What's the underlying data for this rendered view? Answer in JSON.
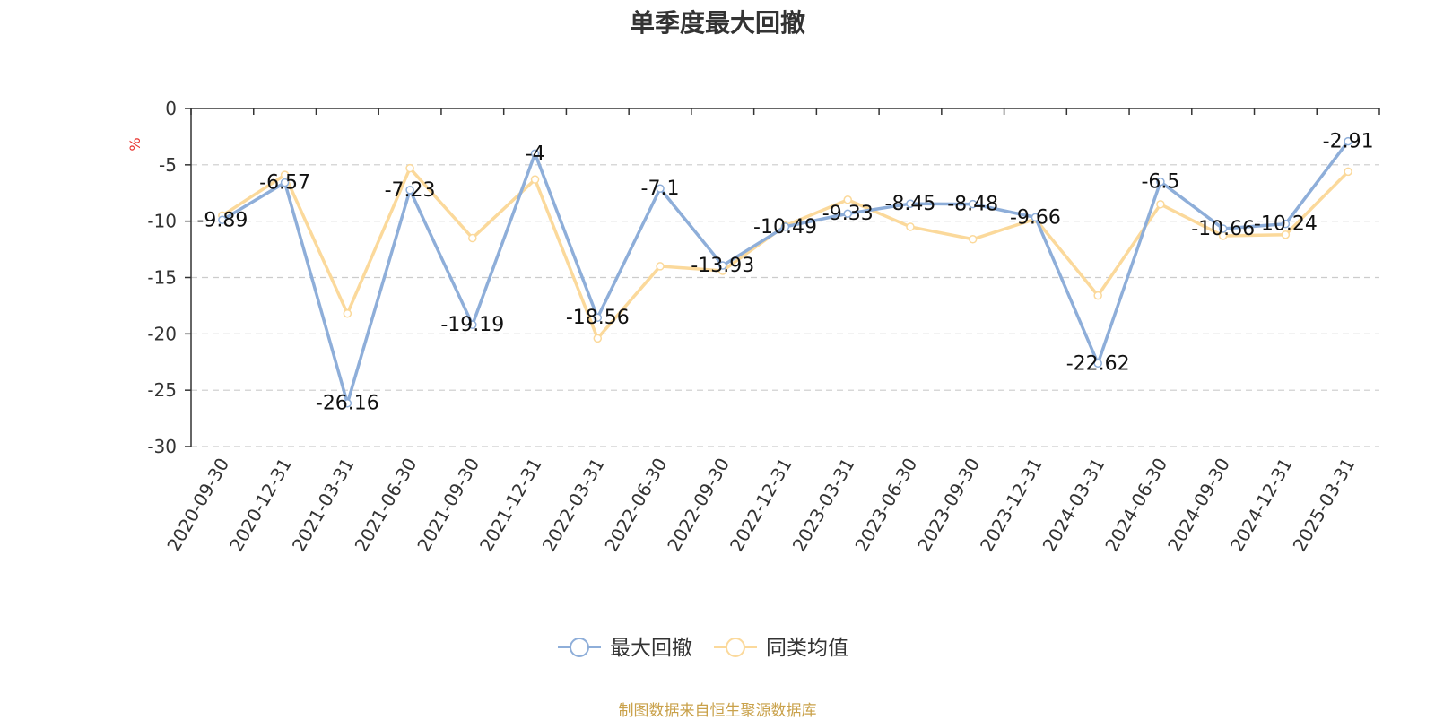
{
  "chart_data": {
    "type": "line",
    "title": "单季度最大回撤",
    "ylabel": "%",
    "ylim": [
      -30,
      0
    ],
    "yticks": [
      0,
      -5,
      -10,
      -15,
      -20,
      -25,
      -30
    ],
    "grid": true,
    "legend_position": "bottom-center",
    "categories": [
      "2020-09-30",
      "2020-12-31",
      "2021-03-31",
      "2021-06-30",
      "2021-09-30",
      "2021-12-31",
      "2022-03-31",
      "2022-06-30",
      "2022-09-30",
      "2022-12-31",
      "2023-03-31",
      "2023-06-30",
      "2023-09-30",
      "2023-12-31",
      "2024-03-31",
      "2024-06-30",
      "2024-09-30",
      "2024-12-31",
      "2025-03-31"
    ],
    "series": [
      {
        "name": "最大回撤",
        "color": "#8eaed9",
        "values": [
          -9.89,
          -6.57,
          -26.16,
          -7.23,
          -19.19,
          -4,
          -18.56,
          -7.1,
          -13.93,
          -10.49,
          -9.33,
          -8.45,
          -8.48,
          -9.66,
          -22.62,
          -6.5,
          -10.66,
          -10.24,
          -2.91
        ],
        "labels": [
          "-9.89",
          "-6.57",
          "-26.16",
          "-7.23",
          "-19.19",
          "-4",
          "-18.56",
          "-7.1",
          "-13.93",
          "-10.49",
          "-9.33",
          "-8.45",
          "-8.48",
          "-9.66",
          "-22.62",
          "-6.5",
          "-10.66",
          "-10.24",
          "-2.91"
        ]
      },
      {
        "name": "同类均值",
        "color": "#fbd99b",
        "values": [
          -9.5,
          -5.9,
          -18.2,
          -5.3,
          -11.5,
          -6.3,
          -20.4,
          -14.0,
          -14.4,
          -10.4,
          -8.1,
          -10.5,
          -11.6,
          -9.8,
          -16.6,
          -8.5,
          -11.3,
          -11.2,
          -5.6
        ]
      }
    ]
  },
  "colors": {
    "unit": "#e8322d",
    "source": "#c9a14a",
    "grid": "#cccccc",
    "axis": "#333333"
  },
  "source_note": "制图数据来自恒生聚源数据库"
}
